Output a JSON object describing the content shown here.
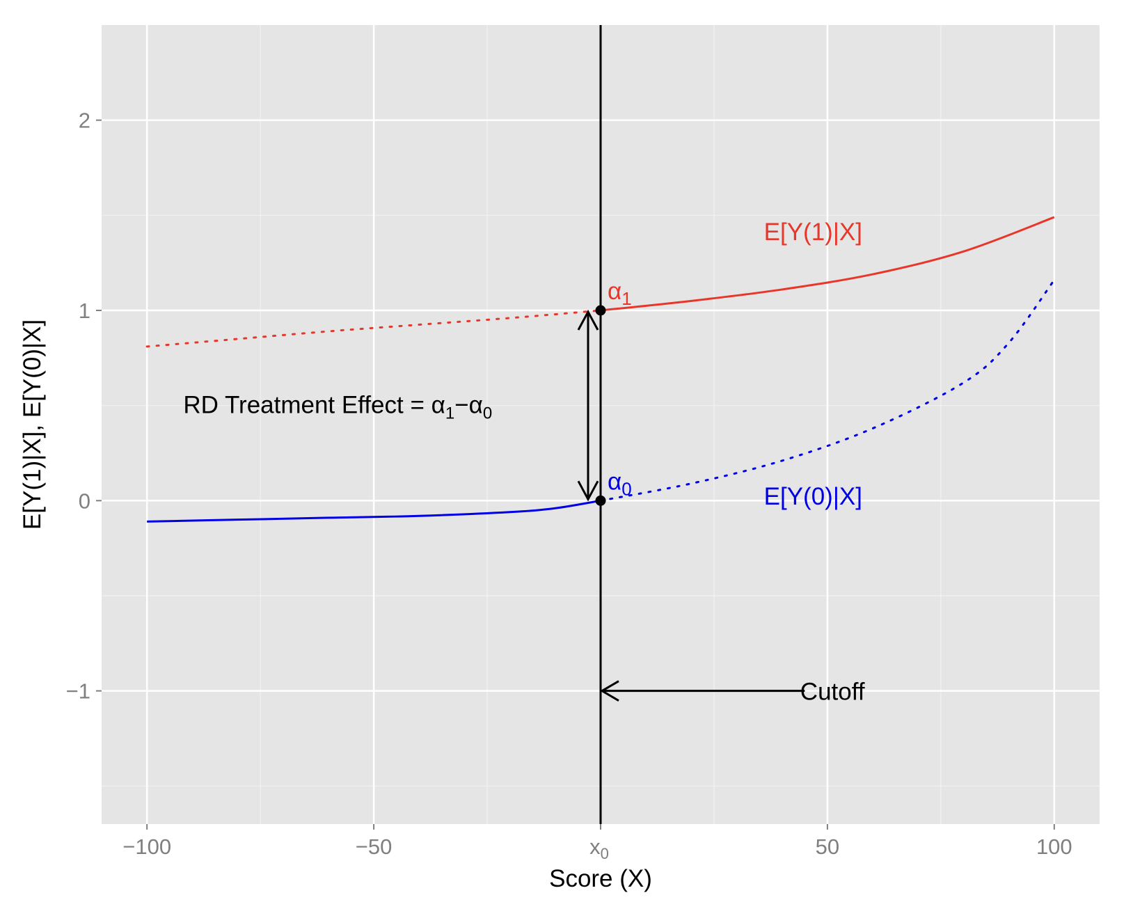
{
  "chart_data": {
    "type": "line",
    "xlabel": "Score (X)",
    "ylabel": "E[Y(1)|X], E[Y(0)|X]",
    "xlim": [
      -110,
      110
    ],
    "ylim": [
      -1.7,
      2.5
    ],
    "x_ticks": [
      {
        "value": -100,
        "label": "−100"
      },
      {
        "value": -50,
        "label": "−50"
      },
      {
        "value": 50,
        "label": "50"
      },
      {
        "value": 100,
        "label": "100"
      }
    ],
    "x_cutoff_tick": {
      "value": 0,
      "label_base": "x",
      "label_sub": "0"
    },
    "x_minor_grid": [
      -75,
      -25,
      25,
      75
    ],
    "y_ticks": [
      {
        "value": -1,
        "label": "−1"
      },
      {
        "value": 0,
        "label": "0"
      },
      {
        "value": 1,
        "label": "1"
      },
      {
        "value": 2,
        "label": "2"
      }
    ],
    "y_minor_grid": [
      -1.5,
      -0.5,
      0.5,
      1.5
    ],
    "grid": true,
    "background": "#e5e5e5",
    "series": [
      {
        "name": "E[Y(1)|X]",
        "color": "#e8372a",
        "dotted": {
          "x": [
            -100,
            -80,
            -60,
            -40,
            -20,
            0
          ],
          "y": [
            0.81,
            0.85,
            0.89,
            0.925,
            0.96,
            1.0
          ]
        },
        "solid": {
          "x": [
            0,
            20,
            40,
            60,
            80,
            100
          ],
          "y": [
            1.0,
            1.05,
            1.11,
            1.19,
            1.31,
            1.49
          ]
        }
      },
      {
        "name": "E[Y(0)|X]",
        "color": "#0000e6",
        "solid": {
          "x": [
            -100,
            -80,
            -60,
            -40,
            -20,
            -10,
            0
          ],
          "y": [
            -0.11,
            -0.1,
            -0.09,
            -0.08,
            -0.06,
            -0.04,
            0.0
          ]
        },
        "dotted": {
          "x": [
            0,
            20,
            40,
            60,
            80,
            90,
            100
          ],
          "y": [
            0.0,
            0.09,
            0.21,
            0.38,
            0.62,
            0.83,
            1.16
          ]
        }
      }
    ],
    "points": [
      {
        "x": 0,
        "y": 1,
        "label_base": "α",
        "label_sub": "1",
        "color": "#e8372a"
      },
      {
        "x": 0,
        "y": 0,
        "label_base": "α",
        "label_sub": "0",
        "color": "#0000e6"
      }
    ],
    "cutoff_x": 0,
    "annotations": {
      "series1_label": "E[Y(1)|X]",
      "series0_label": "E[Y(0)|X]",
      "effect_text": "RD Treatment Effect = ",
      "effect_alpha": "α",
      "effect_sub1": "1",
      "effect_minus": "−",
      "effect_sub0": "0",
      "cutoff_label": "Cutoff"
    }
  }
}
